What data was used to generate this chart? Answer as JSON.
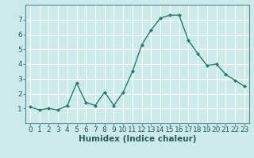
{
  "x": [
    0,
    1,
    2,
    3,
    4,
    5,
    6,
    7,
    8,
    9,
    10,
    11,
    12,
    13,
    14,
    15,
    16,
    17,
    18,
    19,
    20,
    21,
    22,
    23
  ],
  "y": [
    1.1,
    0.9,
    1.0,
    0.9,
    1.2,
    2.7,
    1.4,
    1.2,
    2.1,
    1.2,
    2.1,
    3.5,
    5.3,
    6.3,
    7.1,
    7.3,
    7.3,
    5.6,
    4.7,
    3.9,
    4.0,
    3.3,
    2.9,
    2.5
  ],
  "line_color": "#2a7a6a",
  "marker": "D",
  "marker_size": 2,
  "bg_color": "#cceaea",
  "grid_color": "#ffffff",
  "grid_linecolor_minor": "#e8f8f8",
  "xlabel": "Humidex (Indice chaleur)",
  "xlim": [
    -0.5,
    23.5
  ],
  "ylim": [
    0,
    8
  ],
  "yticks": [
    1,
    2,
    3,
    4,
    5,
    6,
    7
  ],
  "xticks": [
    0,
    1,
    2,
    3,
    4,
    5,
    6,
    7,
    8,
    9,
    10,
    11,
    12,
    13,
    14,
    15,
    16,
    17,
    18,
    19,
    20,
    21,
    22,
    23
  ],
  "xlabel_fontsize": 7.5,
  "tick_fontsize": 6.5,
  "linewidth": 1.0,
  "spine_color": "#5a8a8a"
}
